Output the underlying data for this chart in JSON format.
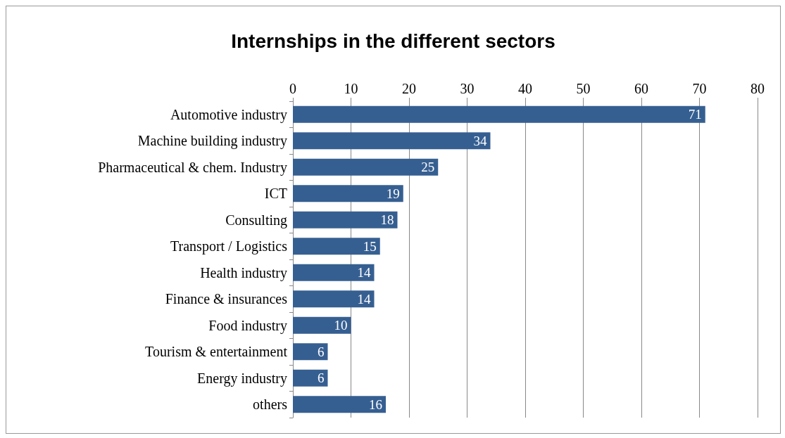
{
  "chart_data": {
    "type": "bar",
    "orientation": "horizontal",
    "title": "Internships in the different sectors",
    "categories": [
      "Automotive industry",
      "Machine building industry",
      "Pharmaceutical & chem. Industry",
      "ICT",
      "Consulting",
      "Transport / Logistics",
      "Health industry",
      "Finance & insurances",
      "Food industry",
      "Tourism & entertainment",
      "Energy industry",
      "others"
    ],
    "values": [
      71,
      34,
      25,
      19,
      18,
      15,
      14,
      14,
      10,
      6,
      6,
      16
    ],
    "color": "#365f91",
    "xlim": [
      0,
      80
    ],
    "xticks": [
      0,
      10,
      20,
      30,
      40,
      50,
      60,
      70,
      80
    ],
    "grid": "x",
    "data_labels": true
  }
}
